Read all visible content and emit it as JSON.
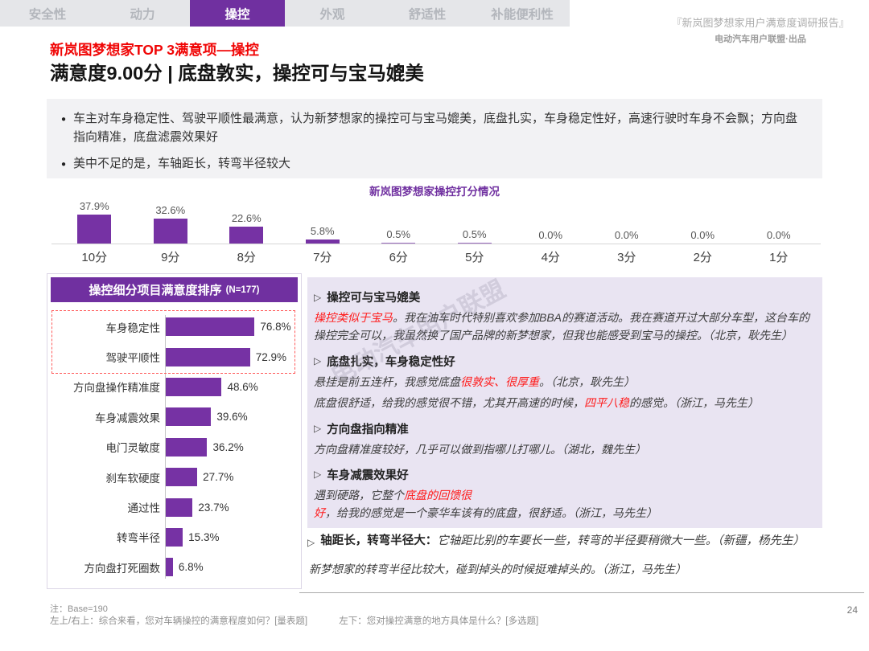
{
  "tabs": {
    "items": [
      {
        "label": "安全性",
        "active": false
      },
      {
        "label": "动力",
        "active": false
      },
      {
        "label": "操控",
        "active": true
      },
      {
        "label": "外观",
        "active": false
      },
      {
        "label": "舒适性",
        "active": false
      },
      {
        "label": "补能便利性",
        "active": false
      }
    ]
  },
  "header": {
    "report_title": "『新岚图梦想家用户满意度调研报告』",
    "publisher": "电动汽车用户联盟·出品",
    "section_title": "新岚图梦想家TOP 3满意项—操控",
    "main_title": "满意度9.00分 | 底盘敦实，操控可与宝马媲美"
  },
  "bullets": [
    "车主对车身稳定性、驾驶平顺性最满意，认为新梦想家的操控可与宝马媲美，底盘扎实，车身稳定性好，高速行驶时车身不会飘；方向盘指向精准，底盘滤震效果好",
    "美中不足的是，车轴距长，转弯半径较大"
  ],
  "bullet_glyph": "●",
  "chart_data": [
    {
      "type": "bar",
      "title": "新岚图梦想家操控打分情况",
      "categories": [
        "10分",
        "9分",
        "8分",
        "7分",
        "6分",
        "5分",
        "4分",
        "3分",
        "2分",
        "1分"
      ],
      "values": [
        37.9,
        32.6,
        22.6,
        5.8,
        0.5,
        0.5,
        0.0,
        0.0,
        0.0,
        0.0
      ],
      "unit": "%",
      "bar_color": "#7632A4",
      "ylim": [
        0,
        40
      ],
      "grid": false,
      "legend": "none"
    },
    {
      "type": "bar",
      "orientation": "horizontal",
      "title": "操控细分项目满意度排序",
      "sample_note": "(N=177)",
      "categories": [
        "车身稳定性",
        "驾驶平顺性",
        "方向盘操作精准度",
        "车身减震效果",
        "电门灵敏度",
        "刹车软硬度",
        "通过性",
        "转弯半径",
        "方向盘打死圈数"
      ],
      "values": [
        76.8,
        72.9,
        48.6,
        39.6,
        36.2,
        27.7,
        23.7,
        15.3,
        6.8
      ],
      "unit": "%",
      "bar_color": "#7632A4",
      "xlim": [
        0,
        100
      ],
      "grid": false,
      "highlight_top_n": 2
    }
  ],
  "quotes_panel": {
    "arrow_glyph": "▷",
    "sections": [
      {
        "heading": "操控可与宝马媲美",
        "paragraphs": [
          [
            {
              "t": "操控类似于宝马",
              "red": true
            },
            {
              "t": "。我在油车时代特别喜欢参加BBA的赛道活动。我在赛道开过大部分车型，这台车的操控完全可以，我虽然换了国产品牌的新梦想家，但我也能感受到宝马的操控。（北京，耿先生）"
            }
          ]
        ]
      },
      {
        "heading": "底盘扎实，车身稳定性好",
        "paragraphs": [
          [
            {
              "t": "悬挂是前五连杆，我感觉底盘"
            },
            {
              "t": "很敦实、很厚重",
              "red": true
            },
            {
              "t": "。（北京，耿先生）"
            }
          ],
          [
            {
              "t": "底盘很舒适，给我的感觉很不错，尤其开高速的时候，"
            },
            {
              "t": "四平八稳",
              "red": true
            },
            {
              "t": "的感觉。（浙江，马先生）"
            }
          ]
        ]
      },
      {
        "heading": "方向盘指向精准",
        "paragraphs": [
          [
            {
              "t": "方向盘精准度较好，几乎可以做到指哪儿打哪儿。（湖北，魏先生）"
            }
          ]
        ]
      },
      {
        "heading": "车身减震效果好",
        "paragraphs": [
          [
            {
              "t": "遇到硬路，它整个"
            },
            {
              "t": "底盘的回馈很好",
              "red": true
            },
            {
              "t": "，给我的感觉是一个豪华车该有的底盘，很舒适。（浙江，马先生）"
            }
          ]
        ]
      }
    ]
  },
  "bottom_section": {
    "heading": "轴距长，转弯半径大：",
    "inline_quote": "它轴距比别的车要长一些，转弯的半径要稍微大一些。（新疆，杨先生）",
    "paragraph": "新梦想家的转弯半径比较大，碰到掉头的时候挺难掉头的。（浙江，马先生）"
  },
  "watermark": "电动汽车用户联盟",
  "footer": {
    "note": "注：Base=190",
    "source_left": "左上/右上：综合来看，您对车辆操控的满意程度如何？[量表题]",
    "source_right": "左下：您对操控满意的地方具体是什么？[多选题]",
    "page": "24"
  },
  "colors": {
    "accent_purple": "#7030A0",
    "bar_purple": "#7632A4",
    "quotes_panel_bg": "#E9E4F2",
    "tabbar_bg": "#E5E6E9",
    "bullets_bg": "#F2F2F4",
    "highlight_red": "#FF1A1A",
    "title_red": "#F00505",
    "dashed_box_red": "#FF5A5A"
  }
}
